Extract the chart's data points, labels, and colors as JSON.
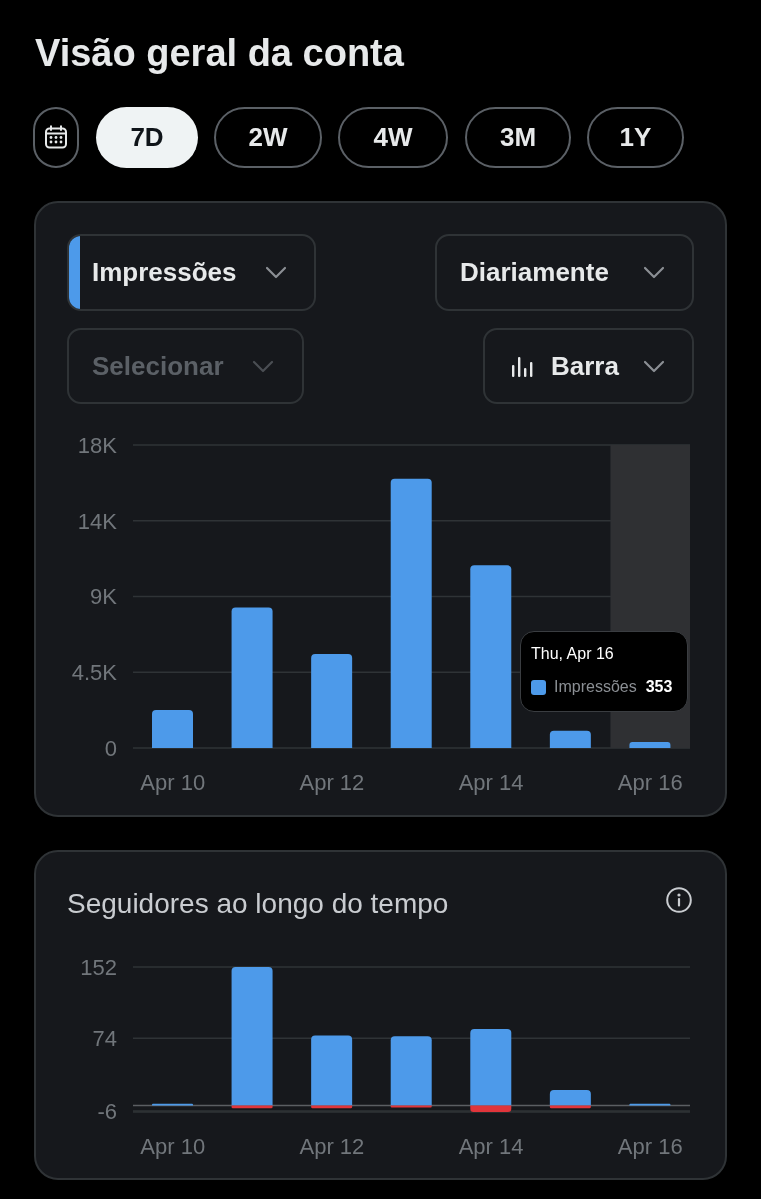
{
  "chart_data": [
    {
      "type": "bar",
      "title": "Visão geral da conta",
      "categories": [
        "Apr 10",
        null,
        "Apr 12",
        null,
        "Apr 14",
        null,
        "Apr 16"
      ],
      "series": [
        {
          "name": "Impressões",
          "color": "#4d9aea",
          "values": [
            2260,
            8340,
            5590,
            16000,
            10850,
            1020,
            353
          ],
          "value_labels": [
            null,
            null,
            null,
            null,
            null,
            null,
            "353"
          ]
        }
      ],
      "ylim": [
        0,
        18000
      ],
      "yticks": [
        0,
        {
          "value": 4500,
          "label": "4.5K"
        },
        {
          "value": 9000,
          "label": "9K"
        },
        {
          "value": 13500,
          "label": "14K"
        },
        {
          "value": 18000,
          "label": "18K"
        }
      ],
      "grid": "y",
      "legend": "bottom right",
      "bands": [
        {
          "axis": "x",
          "from": "Apr 16",
          "to": "Apr 16",
          "color": "#2f3033"
        }
      ],
      "annotations": [
        "7D",
        "2W",
        "4W",
        "3M",
        "1Y",
        "Diariamente",
        "Selecionar",
        "Barra",
        "Thu, Apr 16"
      ]
    },
    {
      "type": "bar",
      "title": "Seguidores ao longo do tempo",
      "categories": [
        "Apr 10",
        null,
        "Apr 12",
        null,
        "Apr 14",
        null,
        "Apr 16"
      ],
      "stacked": true,
      "series": [
        {
          "color": "#4d9aea",
          "values": [
            2,
            152,
            77,
            76,
            84,
            17,
            2
          ]
        },
        {
          "color": "#e0353b",
          "values": [
            null,
            -3,
            -3,
            -2,
            -7,
            -3,
            null
          ]
        }
      ],
      "ylim": [
        -7,
        152
      ],
      "yticks": [
        -6,
        74,
        152
      ],
      "grid": "y",
      "ref_lines": [
        {
          "axis": "y",
          "value": 0,
          "color": "#5b5e62"
        }
      ]
    }
  ]
}
